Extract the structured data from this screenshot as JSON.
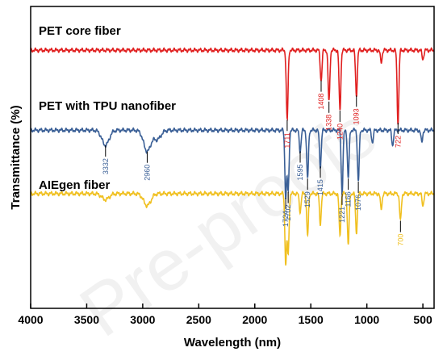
{
  "chart_data": {
    "type": "line",
    "xlabel": "Wavelength (nm)",
    "ylabel": "Transmittance (%)",
    "xlim": [
      4000,
      400
    ],
    "x_reversed": true,
    "x_ticks": [
      4000,
      3500,
      3000,
      2500,
      2000,
      1500,
      1000,
      500
    ],
    "y_ticks_shown": false,
    "grid": false,
    "legend": "none (inline labels above each curve)",
    "watermark": "Pre-proofs",
    "series": [
      {
        "name": "PET core fiber",
        "color": "#e02020",
        "baseline": 0.855,
        "peaks": [
          [
            1711,
            0.23
          ],
          [
            1408,
            0.1
          ],
          [
            1338,
            0.17
          ],
          [
            1240,
            0.2
          ],
          [
            1093,
            0.15
          ],
          [
            872,
            0.04
          ],
          [
            722,
            0.24
          ],
          [
            500,
            0.03
          ]
        ],
        "peak_labels": [
          "1711",
          "1408",
          "1338",
          "1240",
          "1093",
          "722"
        ]
      },
      {
        "name": "PET with TPU nanofiber",
        "color": "#3a5f96",
        "baseline": 0.59,
        "peaks": [
          [
            3332,
            0.05
          ],
          [
            2960,
            0.07
          ],
          [
            2870,
            0.03
          ],
          [
            1724,
            0.22
          ],
          [
            1702,
            0.2
          ],
          [
            1595,
            0.07
          ],
          [
            1529,
            0.16
          ],
          [
            1415,
            0.12
          ],
          [
            1221,
            0.21
          ],
          [
            1166,
            0.16
          ],
          [
            1076,
            0.17
          ],
          [
            950,
            0.04
          ],
          [
            770,
            0.05
          ],
          [
            510,
            0.04
          ]
        ],
        "peak_labels": [
          "3332",
          "2960",
          "1702",
          "1724",
          "1595",
          "1529",
          "1415",
          "1221",
          "1166",
          "1076"
        ]
      },
      {
        "name": "AIEgen fiber",
        "color": "#f0c020",
        "baseline": 0.38,
        "peaks": [
          [
            3332,
            0.02
          ],
          [
            2960,
            0.04
          ],
          [
            1724,
            0.23
          ],
          [
            1702,
            0.2
          ],
          [
            1595,
            0.06
          ],
          [
            1529,
            0.14
          ],
          [
            1415,
            0.1
          ],
          [
            1240,
            0.14
          ],
          [
            1166,
            0.17
          ],
          [
            1093,
            0.13
          ],
          [
            872,
            0.05
          ],
          [
            700,
            0.09
          ],
          [
            500,
            0.04
          ]
        ],
        "peak_labels": [
          "700"
        ]
      }
    ]
  }
}
